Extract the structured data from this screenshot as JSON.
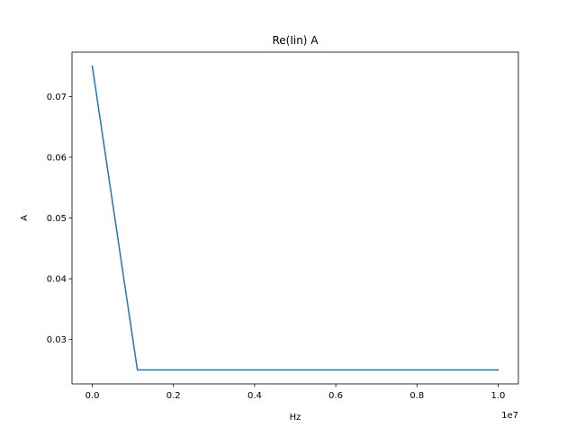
{
  "chart_data": {
    "type": "line",
    "title": "Re(Iin) A",
    "xlabel": "Hz",
    "ylabel": "A",
    "x_offset_label": "1e7",
    "x_scale": 10000000,
    "xlim": [
      -500000,
      10500000
    ],
    "ylim": [
      0.0227,
      0.0773
    ],
    "xticks": [
      0,
      2000000,
      4000000,
      6000000,
      8000000,
      10000000
    ],
    "xtick_labels": [
      "0.0",
      "0.2",
      "0.4",
      "0.6",
      "0.8",
      "1.0"
    ],
    "yticks": [
      0.03,
      0.04,
      0.05,
      0.06,
      0.07
    ],
    "ytick_labels": [
      "0.03",
      "0.04",
      "0.05",
      "0.06",
      "0.07"
    ],
    "grid": false,
    "legend": "none",
    "series": [
      {
        "color": "#1f77b4",
        "x": [
          0,
          1111111,
          2222222,
          3333333,
          4444444,
          5555556,
          6666667,
          7777778,
          8888889,
          10000000
        ],
        "y": [
          0.075,
          0.025,
          0.025,
          0.025,
          0.025,
          0.025,
          0.025,
          0.025,
          0.025,
          0.025
        ]
      }
    ]
  }
}
